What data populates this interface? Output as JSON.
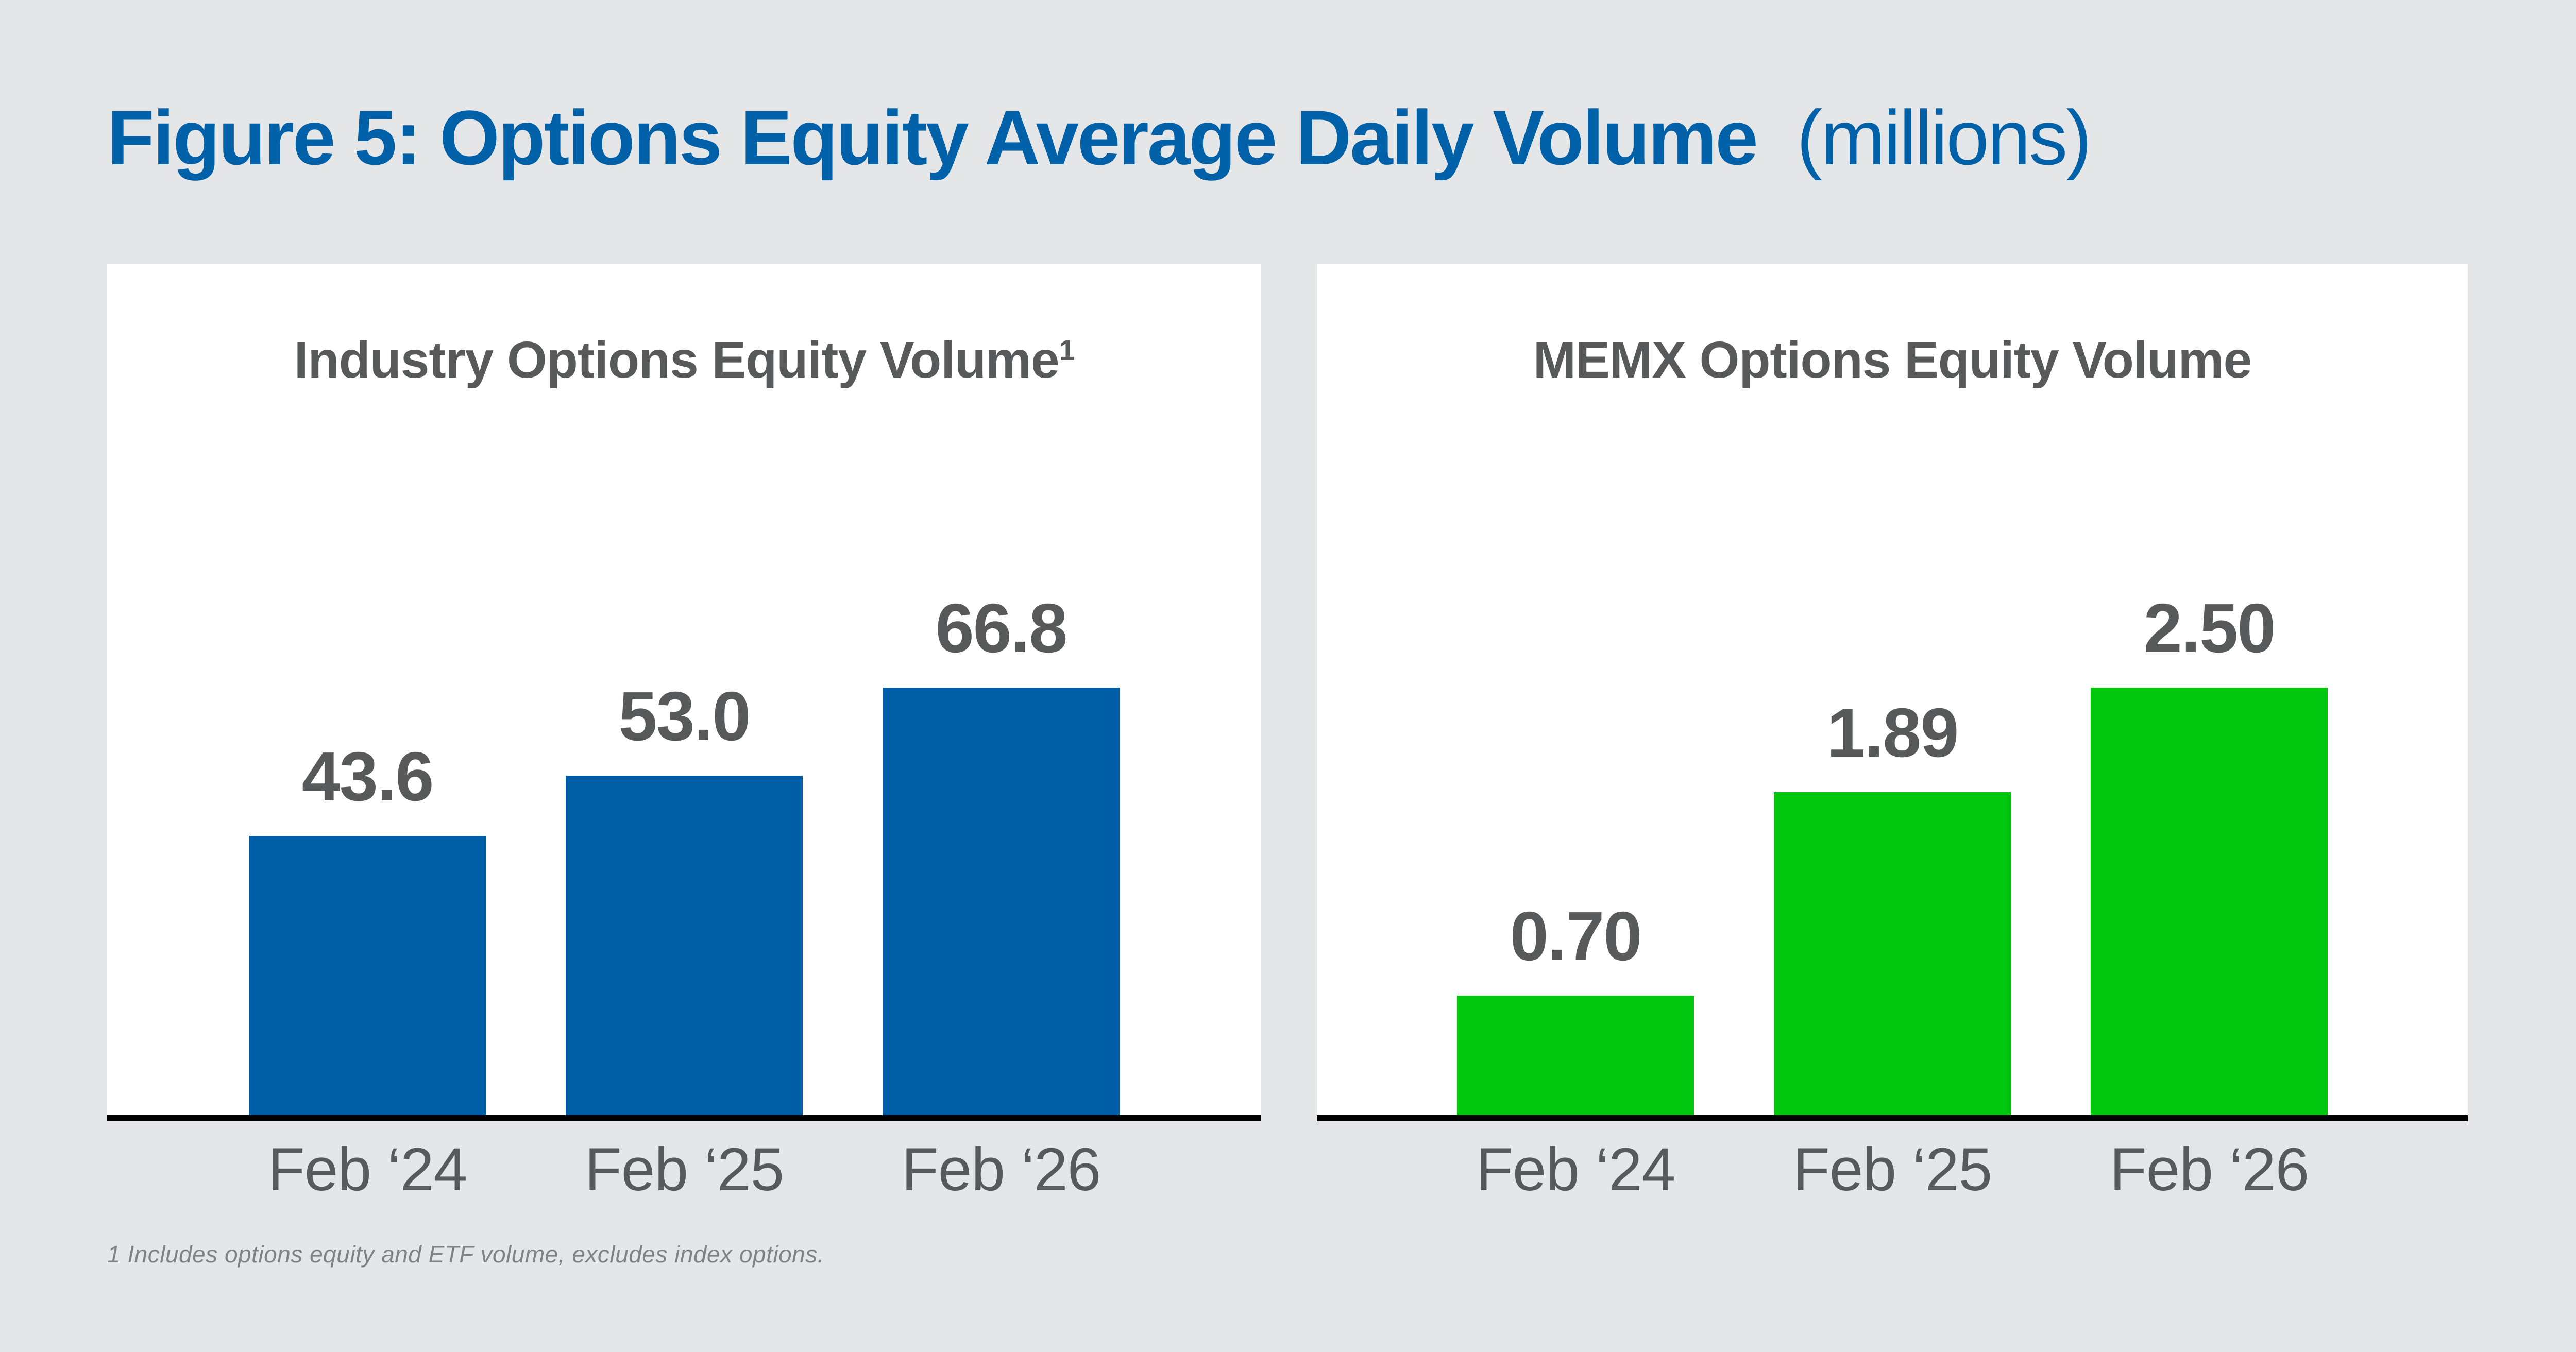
{
  "figure_title": {
    "main": "Figure 5: Options Equity Average Daily Volume",
    "unit": "(millions)"
  },
  "footnote": "1 Includes options equity and ETF volume, excludes index options.",
  "colors": {
    "background": "#E5E6E8",
    "panel_white": "#FFFFFF",
    "title_blue": "#0061A8",
    "bar_blue": "#005EA6",
    "bar_green": "#00C70E",
    "text_dark_gray": "#58595B",
    "footnote_gray": "#808285",
    "axis_black": "#000000"
  },
  "chart_data": [
    {
      "type": "bar",
      "title": "Industry Options Equity Volume",
      "title_superscript": "1",
      "categories": [
        "Feb ‘24",
        "Feb ‘25",
        "Feb ‘26"
      ],
      "values": [
        43.6,
        53.0,
        66.8
      ],
      "value_labels": [
        "43.6",
        "53.0",
        "66.8"
      ],
      "bar_color": "#005EA6",
      "xlabel": "",
      "ylabel": "",
      "ylim": [
        0,
        70
      ],
      "grid": false,
      "legend_position": "none"
    },
    {
      "type": "bar",
      "title": "MEMX Options Equity Volume",
      "title_superscript": "",
      "categories": [
        "Feb ‘24",
        "Feb ‘25",
        "Feb ‘26"
      ],
      "values": [
        0.7,
        1.89,
        2.5
      ],
      "value_labels": [
        "0.70",
        "1.89",
        "2.50"
      ],
      "bar_color": "#00C70E",
      "xlabel": "",
      "ylabel": "",
      "ylim": [
        0,
        2.6
      ],
      "grid": false,
      "legend_position": "none"
    }
  ]
}
